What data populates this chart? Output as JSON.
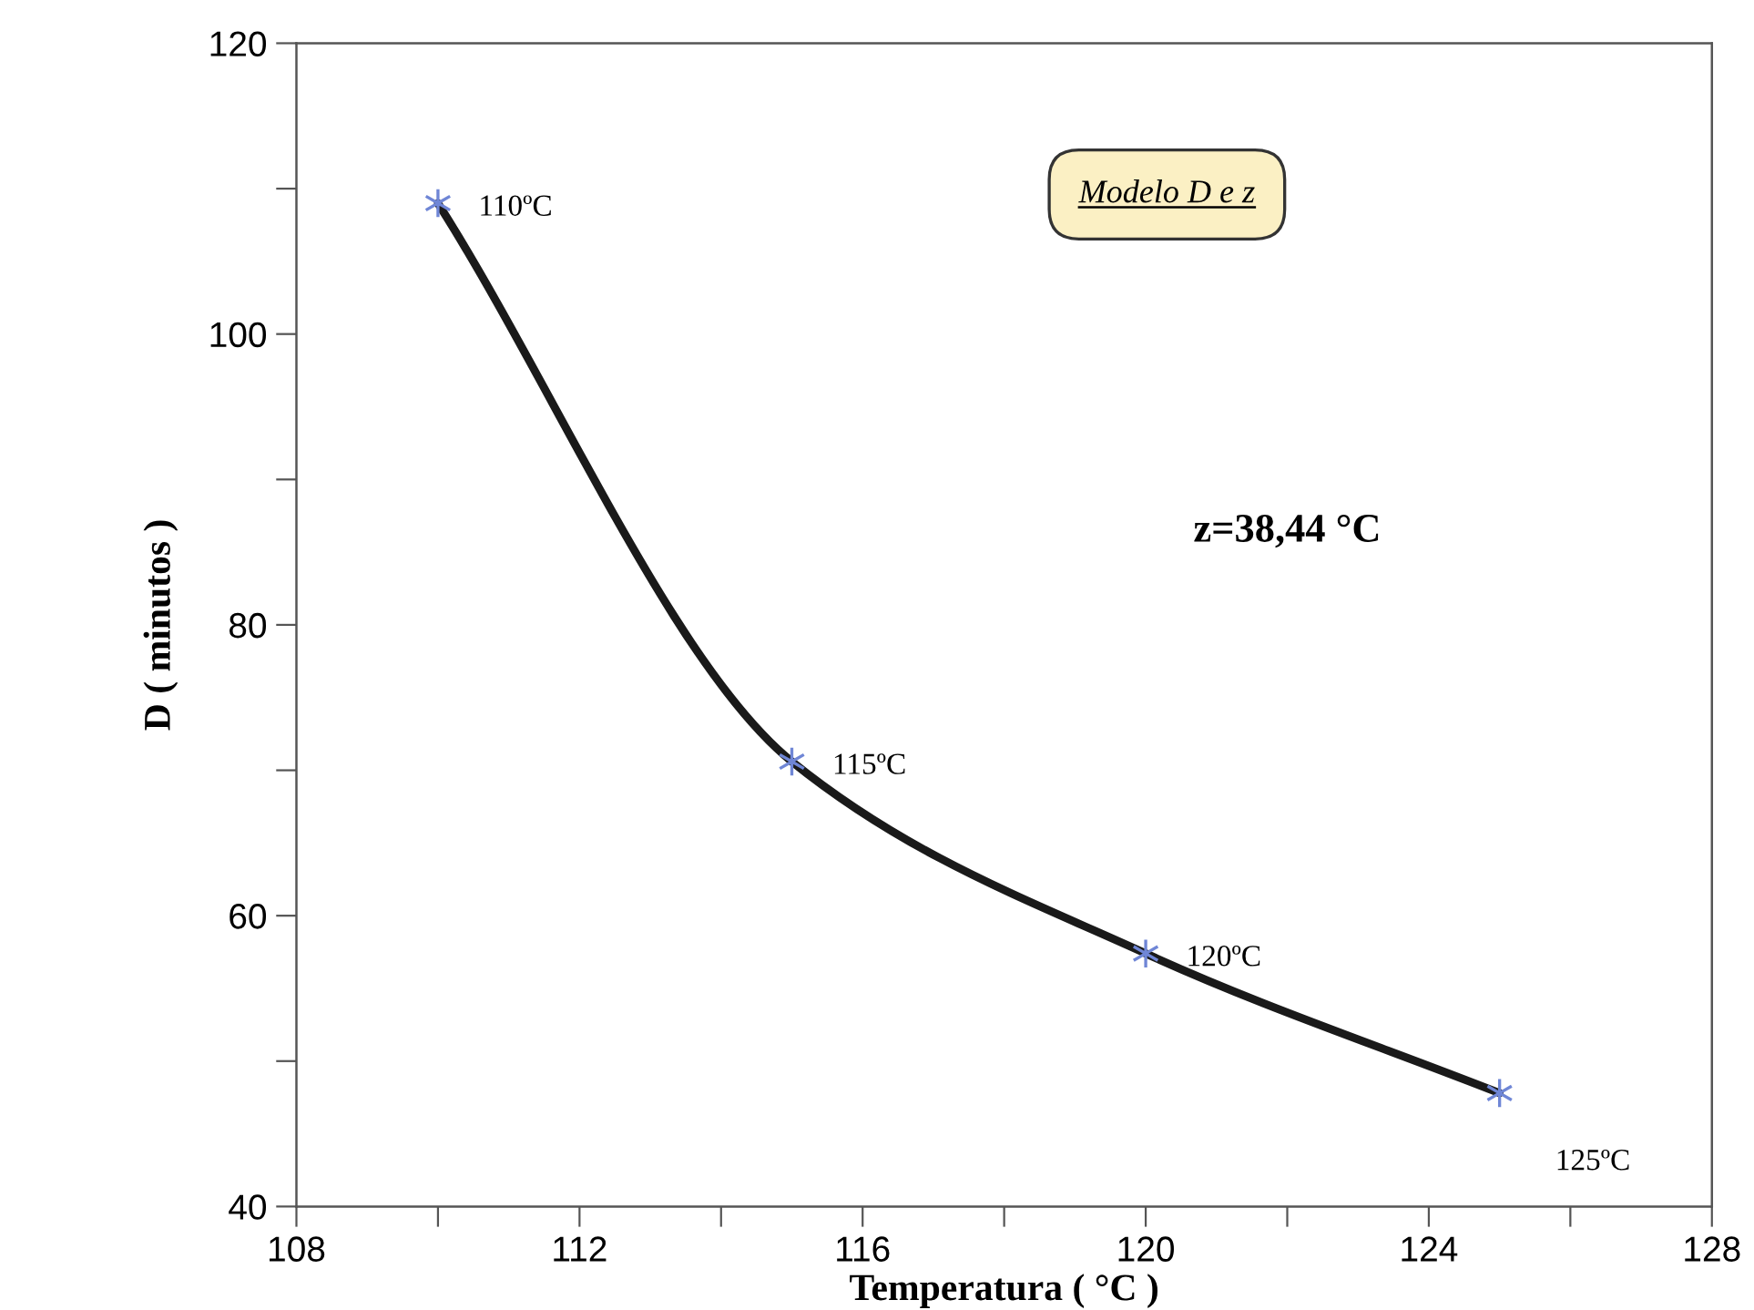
{
  "chart_data": {
    "type": "line",
    "xlabel": "Temperatura ( °C )",
    "ylabel": "D ( minutos )",
    "x": [
      110,
      115,
      120,
      125
    ],
    "series": [
      {
        "color": "#1a1a1a",
        "values": [
          109,
          70.6,
          57.4,
          47.8
        ]
      }
    ],
    "marker": "cross",
    "line_style": "solid",
    "grid": false,
    "legend": false,
    "xlim": [
      108,
      128
    ],
    "ylim": [
      40,
      120
    ],
    "xticks": [
      108,
      {
        "value": 110,
        "label": null
      },
      112,
      {
        "value": 114,
        "label": null
      },
      116,
      {
        "value": 118,
        "label": null
      },
      120,
      {
        "value": 122,
        "label": null
      },
      124,
      {
        "value": 126,
        "label": null
      },
      128
    ],
    "yticks": [
      40,
      {
        "value": 50,
        "label": null
      },
      60,
      {
        "value": 70,
        "label": null
      },
      80,
      {
        "value": 90,
        "label": null
      },
      100,
      {
        "value": 110,
        "label": null
      },
      120
    ],
    "annotations": [
      "Modelo D e z",
      "z=38,44 °C",
      {
        "text": "110ºC",
        "x": 110,
        "y": 109
      },
      {
        "text": "115ºC",
        "x": 115,
        "y": 70.6
      },
      {
        "text": "120ºC",
        "x": 120,
        "y": 57.4
      },
      {
        "text": "125ºC",
        "x": 125,
        "y": 47.8
      }
    ]
  }
}
